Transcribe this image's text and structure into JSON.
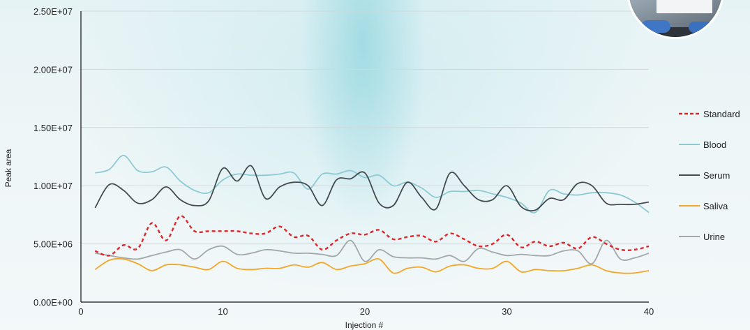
{
  "chart_data": {
    "type": "line",
    "title": "",
    "xlabel": "Injection #",
    "ylabel": "Peak area",
    "xlim": [
      0,
      40
    ],
    "ylim": [
      0,
      25000000
    ],
    "x_ticks": [
      {
        "value": 0,
        "label": "0"
      },
      {
        "value": 10,
        "label": "10"
      },
      {
        "value": 20,
        "label": "20"
      },
      {
        "value": 30,
        "label": "30"
      },
      {
        "value": 40,
        "label": "40"
      }
    ],
    "y_ticks": [
      {
        "value": 0,
        "label": "0.00E+00"
      },
      {
        "value": 5000000,
        "label": "5.00E+06"
      },
      {
        "value": 10000000,
        "label": "1.00E+07"
      },
      {
        "value": 15000000,
        "label": "1.50E+07"
      },
      {
        "value": 20000000,
        "label": "2.00E+07"
      },
      {
        "value": 25000000,
        "label": "2.50E+07"
      }
    ],
    "grid": "horizontal",
    "legend_position": "right",
    "x": [
      1,
      2,
      3,
      4,
      5,
      6,
      7,
      8,
      9,
      10,
      11,
      12,
      13,
      14,
      15,
      16,
      17,
      18,
      19,
      20,
      21,
      22,
      23,
      24,
      25,
      26,
      27,
      28,
      29,
      30,
      31,
      32,
      33,
      34,
      35,
      36,
      37,
      38,
      39,
      40
    ],
    "series": [
      {
        "name": "Standard",
        "color": "#e0262a",
        "dashed": true,
        "values": [
          4400000,
          4000000,
          4900000,
          4600000,
          6800000,
          5300000,
          7400000,
          6100000,
          6100000,
          6100000,
          6100000,
          5900000,
          5900000,
          6500000,
          5600000,
          5700000,
          4500000,
          5300000,
          5900000,
          5800000,
          6200000,
          5400000,
          5600000,
          5700000,
          5200000,
          5900000,
          5400000,
          4800000,
          5000000,
          5800000,
          4700000,
          5200000,
          4800000,
          5100000,
          4600000,
          5600000,
          5000000,
          4500000,
          4500000,
          4800000
        ]
      },
      {
        "name": "Blood",
        "color": "#8dcad4",
        "dashed": false,
        "values": [
          11100000,
          11400000,
          12600000,
          11300000,
          11200000,
          11600000,
          10400000,
          9600000,
          9400000,
          10500000,
          11000000,
          10900000,
          10900000,
          11000000,
          11100000,
          9700000,
          11000000,
          11000000,
          11300000,
          10700000,
          10900000,
          10000000,
          10300000,
          9800000,
          9000000,
          9500000,
          9500000,
          9600000,
          9300000,
          9000000,
          8500000,
          7700000,
          9600000,
          9300000,
          9200000,
          9400000,
          9400000,
          9200000,
          8600000,
          7700000
        ]
      },
      {
        "name": "Serum",
        "color": "#444b50",
        "dashed": false,
        "values": [
          8100000,
          10100000,
          9600000,
          8500000,
          8800000,
          9900000,
          8800000,
          8300000,
          8700000,
          11500000,
          10400000,
          11700000,
          8900000,
          9900000,
          10300000,
          10000000,
          8300000,
          10500000,
          10600000,
          11100000,
          8500000,
          8300000,
          10300000,
          9000000,
          8000000,
          11100000,
          10000000,
          8800000,
          8800000,
          10000000,
          8200000,
          7900000,
          8900000,
          8800000,
          10200000,
          10000000,
          8500000,
          8400000,
          8400000,
          8600000
        ]
      },
      {
        "name": "Saliva",
        "color": "#f2a72a",
        "dashed": false,
        "values": [
          2800000,
          3600000,
          3700000,
          3300000,
          2700000,
          3200000,
          3200000,
          3000000,
          2800000,
          3500000,
          2900000,
          2800000,
          2900000,
          2900000,
          3200000,
          3000000,
          3400000,
          2800000,
          3100000,
          3300000,
          3700000,
          2500000,
          2900000,
          3000000,
          2600000,
          3100000,
          3200000,
          2900000,
          2900000,
          3500000,
          2600000,
          2800000,
          2700000,
          2700000,
          2900000,
          3200000,
          2700000,
          2500000,
          2500000,
          2700000
        ]
      },
      {
        "name": "Urine",
        "color": "#a2a7ab",
        "dashed": false,
        "values": [
          4200000,
          4000000,
          3800000,
          3700000,
          4000000,
          4300000,
          4500000,
          3700000,
          4500000,
          4800000,
          4100000,
          4200000,
          4500000,
          4400000,
          4200000,
          4200000,
          4100000,
          4000000,
          5300000,
          3500000,
          4500000,
          3900000,
          3800000,
          3800000,
          3700000,
          4000000,
          3500000,
          4600000,
          4300000,
          4000000,
          4100000,
          4000000,
          4000000,
          4400000,
          4400000,
          3300000,
          5300000,
          3700000,
          3800000,
          4200000
        ]
      }
    ]
  }
}
